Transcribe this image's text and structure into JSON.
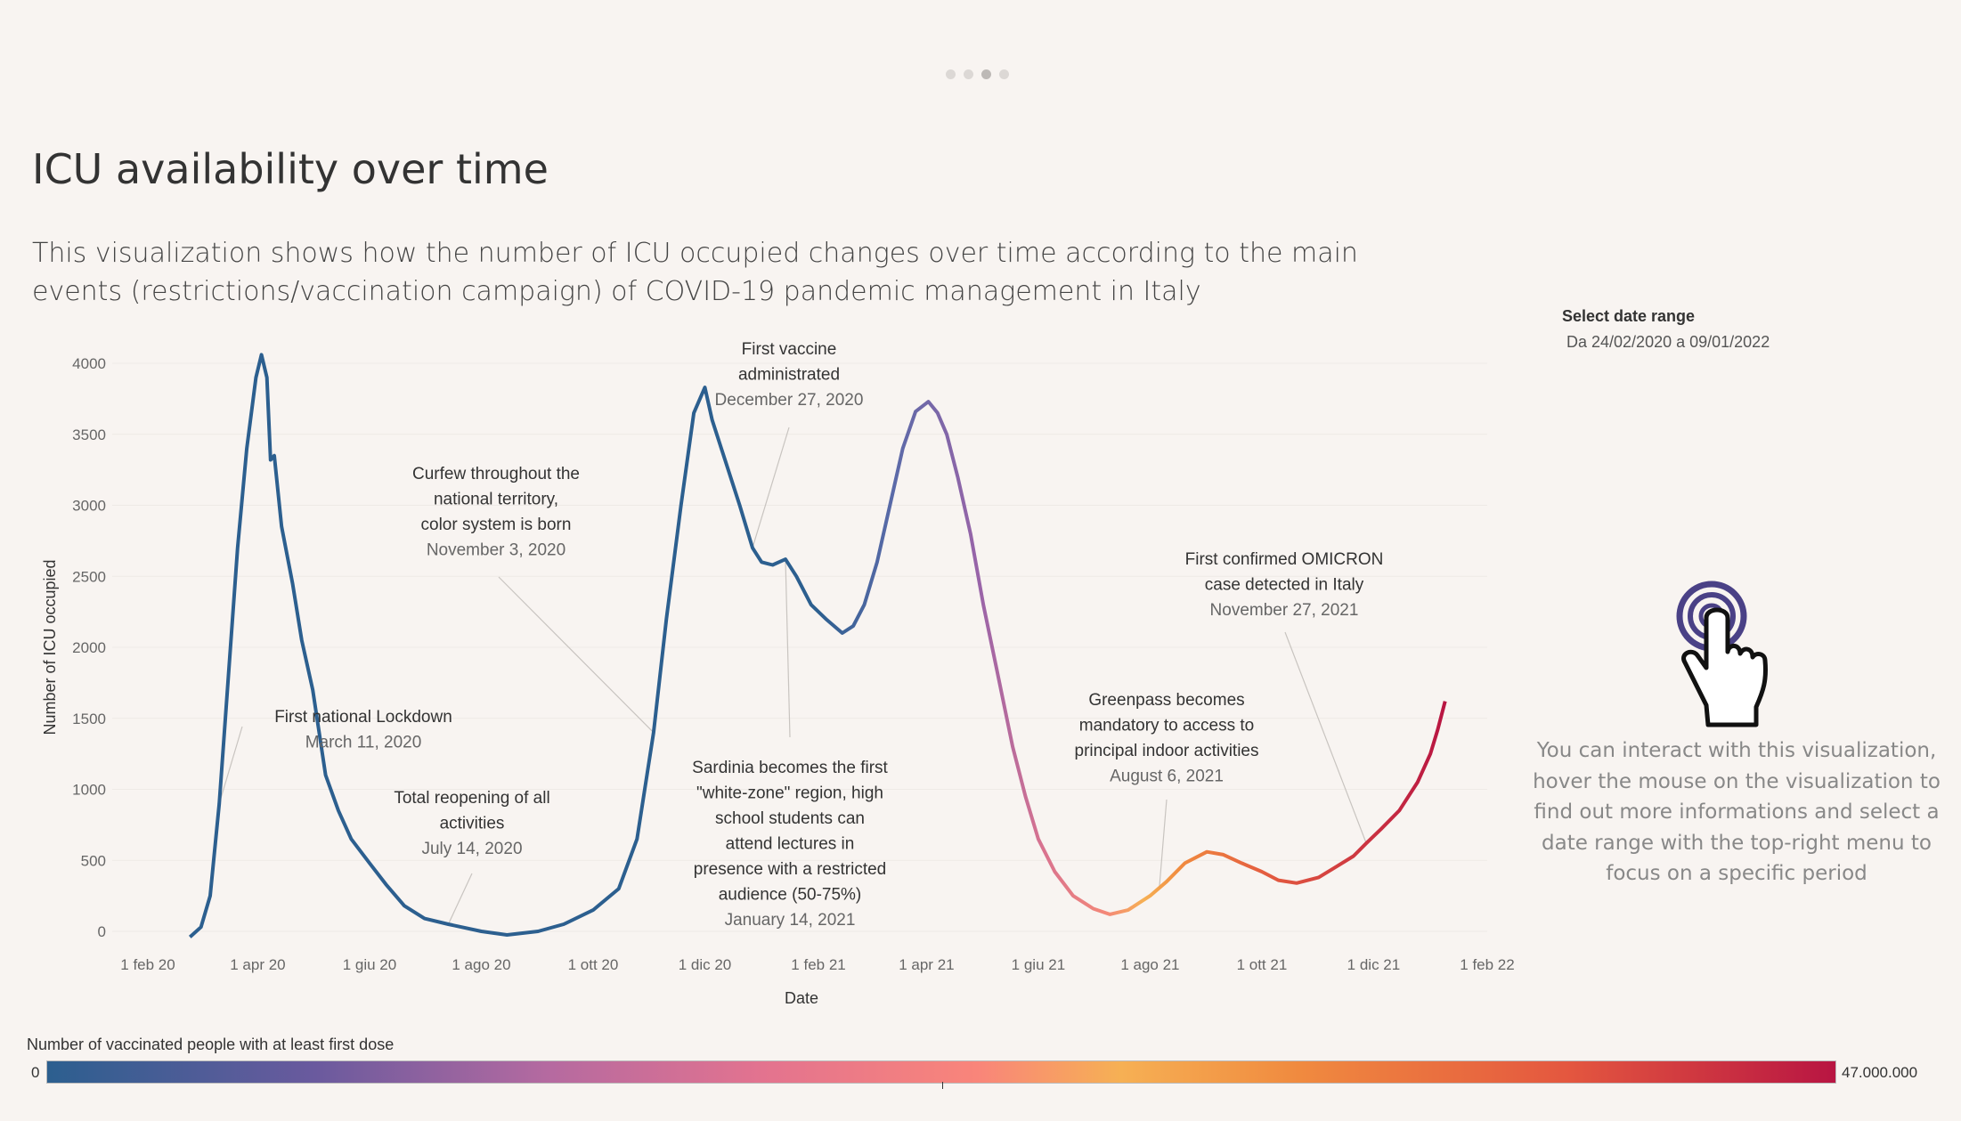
{
  "pager": {
    "count": 4,
    "active": 2
  },
  "title": "ICU availability over time",
  "subtitle": "This visualization shows how the number of ICU occupied changes over time according to the main events (restrictions/vaccination campaign) of COVID-19 pandemic management in Italy",
  "date_filter": {
    "label": "Select date range",
    "value": "Da 24/02/2020 a 09/01/2022"
  },
  "info_text": "You can interact with this visualization, hover the mouse on the visualization to find out more informations and select a date range with the top-right menu to focus on a specific period",
  "icons": {
    "hand": "hand-pointer-icon"
  },
  "legend": {
    "title": "Number of vaccinated people with at least first dose",
    "min": "0",
    "max": "47.000.000"
  },
  "colors": {
    "background": "#f8f4f1",
    "line_start": "#2c5f8f",
    "line_mid": "#f6b054",
    "line_end": "#b81542",
    "pointer_ring": "#4a4186"
  },
  "chart_data": {
    "type": "line",
    "xlabel": "Date",
    "ylabel": "Number of ICU occupied",
    "xlim": [
      "2020-02-01",
      "2022-02-01"
    ],
    "ylim": [
      0,
      4000
    ],
    "x_ticks": [
      {
        "date": "2020-02-01",
        "label": "1 feb 20"
      },
      {
        "date": "2020-04-01",
        "label": "1 apr 20"
      },
      {
        "date": "2020-06-01",
        "label": "1 giu 20"
      },
      {
        "date": "2020-08-01",
        "label": "1 ago 20"
      },
      {
        "date": "2020-10-01",
        "label": "1 ott 20"
      },
      {
        "date": "2020-12-01",
        "label": "1 dic 20"
      },
      {
        "date": "2021-02-01",
        "label": "1 feb 21"
      },
      {
        "date": "2021-04-01",
        "label": "1 apr 21"
      },
      {
        "date": "2021-06-01",
        "label": "1 giu 21"
      },
      {
        "date": "2021-08-01",
        "label": "1 ago 21"
      },
      {
        "date": "2021-10-01",
        "label": "1 ott 21"
      },
      {
        "date": "2021-12-01",
        "label": "1 dic 21"
      },
      {
        "date": "2022-02-01",
        "label": "1 feb 22"
      }
    ],
    "y_ticks": [
      0,
      500,
      1000,
      1500,
      2000,
      2500,
      3000,
      3500,
      4000
    ],
    "series": [
      {
        "points": [
          [
            "2020-02-24",
            -40
          ],
          [
            "2020-03-01",
            30
          ],
          [
            "2020-03-06",
            250
          ],
          [
            "2020-03-11",
            900
          ],
          [
            "2020-03-16",
            1800
          ],
          [
            "2020-03-21",
            2700
          ],
          [
            "2020-03-26",
            3400
          ],
          [
            "2020-03-31",
            3900
          ],
          [
            "2020-04-03",
            4060
          ],
          [
            "2020-04-06",
            3900
          ],
          [
            "2020-04-08",
            3320
          ],
          [
            "2020-04-10",
            3350
          ],
          [
            "2020-04-14",
            2850
          ],
          [
            "2020-04-20",
            2450
          ],
          [
            "2020-04-25",
            2050
          ],
          [
            "2020-05-01",
            1700
          ],
          [
            "2020-05-08",
            1100
          ],
          [
            "2020-05-15",
            850
          ],
          [
            "2020-05-22",
            650
          ],
          [
            "2020-06-01",
            480
          ],
          [
            "2020-06-10",
            330
          ],
          [
            "2020-06-20",
            180
          ],
          [
            "2020-07-01",
            90
          ],
          [
            "2020-07-14",
            50
          ],
          [
            "2020-08-01",
            0
          ],
          [
            "2020-08-15",
            -25
          ],
          [
            "2020-09-01",
            0
          ],
          [
            "2020-09-15",
            50
          ],
          [
            "2020-10-01",
            150
          ],
          [
            "2020-10-15",
            300
          ],
          [
            "2020-10-25",
            650
          ],
          [
            "2020-11-03",
            1400
          ],
          [
            "2020-11-10",
            2200
          ],
          [
            "2020-11-18",
            3000
          ],
          [
            "2020-11-25",
            3650
          ],
          [
            "2020-12-01",
            3830
          ],
          [
            "2020-12-05",
            3600
          ],
          [
            "2020-12-10",
            3400
          ],
          [
            "2020-12-20",
            3000
          ],
          [
            "2020-12-27",
            2700
          ],
          [
            "2021-01-01",
            2600
          ],
          [
            "2021-01-07",
            2580
          ],
          [
            "2021-01-14",
            2620
          ],
          [
            "2021-01-20",
            2500
          ],
          [
            "2021-01-28",
            2300
          ],
          [
            "2021-02-05",
            2200
          ],
          [
            "2021-02-14",
            2100
          ],
          [
            "2021-02-20",
            2150
          ],
          [
            "2021-02-26",
            2300
          ],
          [
            "2021-03-05",
            2600
          ],
          [
            "2021-03-12",
            3000
          ],
          [
            "2021-03-19",
            3400
          ],
          [
            "2021-03-26",
            3660
          ],
          [
            "2021-04-02",
            3730
          ],
          [
            "2021-04-07",
            3650
          ],
          [
            "2021-04-12",
            3500
          ],
          [
            "2021-04-18",
            3200
          ],
          [
            "2021-04-25",
            2800
          ],
          [
            "2021-05-02",
            2300
          ],
          [
            "2021-05-10",
            1800
          ],
          [
            "2021-05-18",
            1300
          ],
          [
            "2021-05-25",
            950
          ],
          [
            "2021-06-01",
            650
          ],
          [
            "2021-06-10",
            420
          ],
          [
            "2021-06-20",
            250
          ],
          [
            "2021-07-01",
            160
          ],
          [
            "2021-07-10",
            120
          ],
          [
            "2021-07-20",
            150
          ],
          [
            "2021-08-01",
            250
          ],
          [
            "2021-08-10",
            350
          ],
          [
            "2021-08-20",
            480
          ],
          [
            "2021-09-01",
            560
          ],
          [
            "2021-09-10",
            540
          ],
          [
            "2021-09-20",
            480
          ],
          [
            "2021-10-01",
            420
          ],
          [
            "2021-10-10",
            360
          ],
          [
            "2021-10-20",
            340
          ],
          [
            "2021-11-01",
            380
          ],
          [
            "2021-11-10",
            450
          ],
          [
            "2021-11-20",
            530
          ],
          [
            "2021-11-27",
            620
          ],
          [
            "2021-12-05",
            720
          ],
          [
            "2021-12-15",
            850
          ],
          [
            "2021-12-25",
            1050
          ],
          [
            "2022-01-01",
            1250
          ],
          [
            "2022-01-05",
            1420
          ],
          [
            "2022-01-09",
            1620
          ]
        ]
      }
    ],
    "annotations": [
      {
        "lines": [
          "First national Lockdown"
        ],
        "date_text": "March 11, 2020",
        "date": "2020-03-11",
        "value": 900
      },
      {
        "lines": [
          "Total reopening of all",
          "activities"
        ],
        "date_text": "July 14, 2020",
        "date": "2020-07-14",
        "value": 50
      },
      {
        "lines": [
          "Curfew throughout the",
          "national territory,",
          "color system is born"
        ],
        "date_text": "November 3, 2020",
        "date": "2020-11-03",
        "value": 1400
      },
      {
        "lines": [
          "First vaccine",
          "administrated"
        ],
        "date_text": "December 27, 2020",
        "date": "2020-12-27",
        "value": 2700
      },
      {
        "lines": [
          "Sardinia becomes the first",
          "\"white-zone\" region, high",
          "school students can",
          "attend lectures in",
          "presence with a restricted",
          "audience (50-75%)"
        ],
        "date_text": "January 14, 2021",
        "date": "2021-01-14",
        "value": 2620
      },
      {
        "lines": [
          "Greenpass becomes",
          "mandatory to access to",
          "principal indoor activities"
        ],
        "date_text": "August 6, 2021",
        "date": "2021-08-06",
        "value": 300
      },
      {
        "lines": [
          "First confirmed OMICRON",
          "case detected in Italy"
        ],
        "date_text": "November 27, 2021",
        "date": "2021-11-27",
        "value": 620
      }
    ]
  }
}
